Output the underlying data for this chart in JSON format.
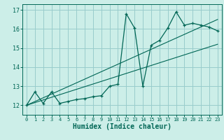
{
  "title": "",
  "xlabel": "Humidex (Indice chaleur)",
  "bg_color": "#cceee8",
  "grid_color": "#99cccc",
  "line_color": "#006655",
  "xlim": [
    -0.5,
    23.5
  ],
  "ylim": [
    11.5,
    17.3
  ],
  "x_ticks": [
    0,
    1,
    2,
    3,
    4,
    5,
    6,
    7,
    8,
    9,
    10,
    11,
    12,
    13,
    14,
    15,
    16,
    17,
    18,
    19,
    20,
    21,
    22,
    23
  ],
  "y_ticks": [
    12,
    13,
    14,
    15,
    16,
    17
  ],
  "y_line": [
    12.0,
    12.7,
    12.1,
    12.7,
    12.1,
    12.2,
    12.3,
    12.35,
    12.45,
    12.5,
    13.0,
    13.1,
    16.8,
    16.05,
    13.0,
    15.15,
    15.4,
    16.05,
    16.9,
    16.2,
    16.3,
    16.2,
    16.1,
    15.9
  ],
  "line2_x": [
    0,
    23
  ],
  "line2_y": [
    12.0,
    15.2
  ],
  "line3_x": [
    0,
    23
  ],
  "line3_y": [
    12.0,
    16.5
  ]
}
